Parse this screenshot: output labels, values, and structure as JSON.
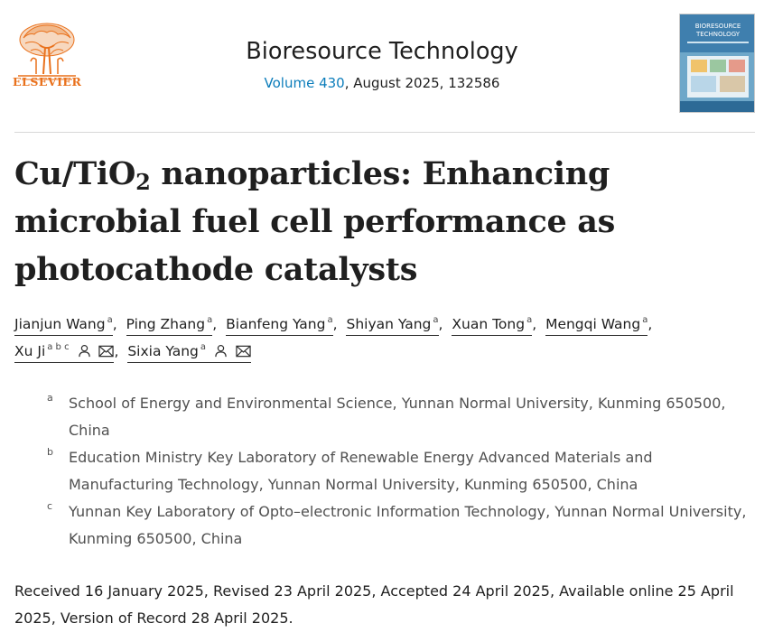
{
  "journal": {
    "publisher_logo_text": "ELSEVIER",
    "name": "Bioresource Technology",
    "volume_link": "Volume 430",
    "issue_info": ", August 2025, 132586",
    "cover_title_line1": "BIORESOURCE",
    "cover_title_line2": "TECHNOLOGY"
  },
  "article": {
    "title_part1": "Cu/TiO",
    "title_sub": "2",
    "title_part2": " nanoparticles: Enhancing microbial fuel cell performance as photocathode catalysts"
  },
  "authors": [
    {
      "name": "Jianjun Wang",
      "affil": "a"
    },
    {
      "name": "Ping Zhang",
      "affil": "a"
    },
    {
      "name": "Bianfeng Yang",
      "affil": "a"
    },
    {
      "name": "Shiyan Yang",
      "affil": "a"
    },
    {
      "name": "Xuan Tong",
      "affil": "a"
    },
    {
      "name": "Mengqi Wang",
      "affil": "a"
    },
    {
      "name": "Xu Ji",
      "affil": "a b c"
    },
    {
      "name": "Sixia Yang",
      "affil": "a"
    }
  ],
  "affiliations": [
    {
      "label": "a",
      "text": "School of Energy and Environmental Science, Yunnan Normal University, Kunming 650500, China"
    },
    {
      "label": "b",
      "text": "Education Ministry Key Laboratory of Renewable Energy Advanced Materials and Manufacturing Technology, Yunnan Normal University, Kunming 650500, China"
    },
    {
      "label": "c",
      "text": "Yunnan Key Laboratory of Opto–electronic Information Technology, Yunnan Normal University, Kunming 650500, China"
    }
  ],
  "history": "Received 16 January 2025, Revised 23 April 2025, Accepted 24 April 2025, Available online 25 April 2025, Version of Record 28 April 2025.",
  "colors": {
    "link": "#0c7dbb",
    "elsevier_orange": "#e9711c",
    "text": "#1f1f1f",
    "affiliation_text": "#505050"
  },
  "icons": [
    "elsevier-tree-logo",
    "person-icon",
    "envelope-icon"
  ]
}
